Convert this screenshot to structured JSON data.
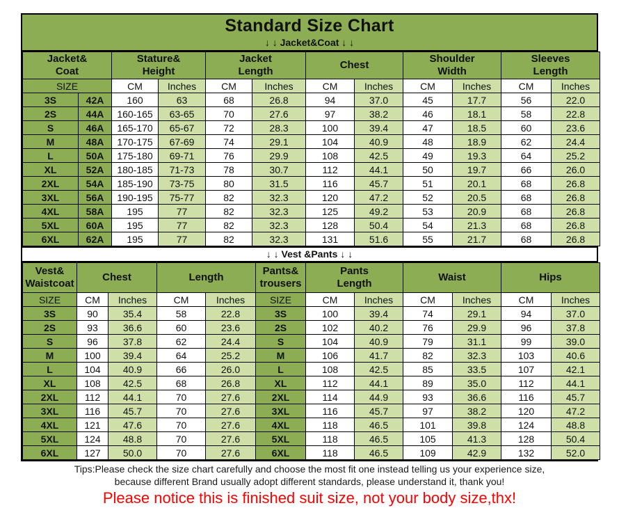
{
  "title": "Standard Size Chart",
  "sections": {
    "jacket_label": "↓ ↓  Jacket&Coat ↓ ↓",
    "vest_label": "↓ ↓  Vest &Pants ↓ ↓"
  },
  "colors": {
    "header_green": "#8cad53",
    "light_green": "#cedfa8",
    "red_notice": "#ff0000"
  },
  "jacket_table": {
    "group_headers": [
      "Jacket&\nCoat",
      "Stature&\nHeight",
      "Jacket\nLength",
      "Chest",
      "Shoulder\nWidth",
      "Sleeves\nLength"
    ],
    "subheader": [
      "SIZE",
      "CM",
      "Inches",
      "CM",
      "Inches",
      "CM",
      "Inches",
      "CM",
      "Inches",
      "CM",
      "Inches"
    ],
    "rows": [
      [
        "3S",
        "42A",
        "160",
        "63",
        "68",
        "26.8",
        "94",
        "37.0",
        "45",
        "17.7",
        "56",
        "22.0"
      ],
      [
        "2S",
        "44A",
        "160-165",
        "63-65",
        "70",
        "27.6",
        "97",
        "38.2",
        "46",
        "18.1",
        "58",
        "22.8"
      ],
      [
        "S",
        "46A",
        "165-170",
        "65-67",
        "72",
        "28.3",
        "100",
        "39.4",
        "47",
        "18.5",
        "60",
        "23.6"
      ],
      [
        "M",
        "48A",
        "170-175",
        "67-69",
        "74",
        "29.1",
        "104",
        "40.9",
        "48",
        "18.9",
        "62",
        "24.4"
      ],
      [
        "L",
        "50A",
        "175-180",
        "69-71",
        "76",
        "29.9",
        "108",
        "42.5",
        "49",
        "19.3",
        "64",
        "25.2"
      ],
      [
        "XL",
        "52A",
        "180-185",
        "71-73",
        "78",
        "30.7",
        "112",
        "44.1",
        "50",
        "19.7",
        "66",
        "26.0"
      ],
      [
        "2XL",
        "54A",
        "185-190",
        "73-75",
        "80",
        "31.5",
        "116",
        "45.7",
        "51",
        "20.1",
        "68",
        "26.8"
      ],
      [
        "3XL",
        "56A",
        "190-195",
        "75-77",
        "82",
        "32.3",
        "120",
        "47.2",
        "52",
        "20.5",
        "68",
        "26.8"
      ],
      [
        "4XL",
        "58A",
        "195",
        "77",
        "82",
        "32.3",
        "125",
        "49.2",
        "53",
        "20.9",
        "68",
        "26.8"
      ],
      [
        "5XL",
        "60A",
        "195",
        "77",
        "82",
        "32.3",
        "128",
        "50.4",
        "54",
        "21.3",
        "68",
        "26.8"
      ],
      [
        "6XL",
        "62A",
        "195",
        "77",
        "82",
        "32.3",
        "131",
        "51.6",
        "55",
        "21.7",
        "68",
        "26.8"
      ]
    ]
  },
  "vest_table": {
    "group_headers": [
      "Vest&\nWaistcoat",
      "Chest",
      "Length",
      "Pants&\ntrousers",
      "Pants\nLength",
      "Waist",
      "Hips"
    ],
    "subheader": [
      "SIZE",
      "CM",
      "Inches",
      "CM",
      "Inches",
      "SIZE",
      "CM",
      "Inches",
      "CM",
      "Inches",
      "CM",
      "Inches"
    ],
    "rows": [
      [
        "3S",
        "90",
        "35.4",
        "58",
        "22.8",
        "3S",
        "100",
        "39.4",
        "74",
        "29.1",
        "94",
        "37.0"
      ],
      [
        "2S",
        "93",
        "36.6",
        "60",
        "23.6",
        "2S",
        "102",
        "40.2",
        "76",
        "29.9",
        "96",
        "37.8"
      ],
      [
        "S",
        "96",
        "37.8",
        "62",
        "24.4",
        "S",
        "104",
        "40.9",
        "79",
        "31.1",
        "99",
        "39.0"
      ],
      [
        "M",
        "100",
        "39.4",
        "64",
        "25.2",
        "M",
        "106",
        "41.7",
        "82",
        "32.3",
        "103",
        "40.6"
      ],
      [
        "L",
        "104",
        "40.9",
        "66",
        "26.0",
        "L",
        "108",
        "42.5",
        "85",
        "33.5",
        "107",
        "42.1"
      ],
      [
        "XL",
        "108",
        "42.5",
        "68",
        "26.8",
        "XL",
        "112",
        "44.1",
        "89",
        "35.0",
        "112",
        "44.1"
      ],
      [
        "2XL",
        "112",
        "44.1",
        "70",
        "27.6",
        "2XL",
        "114",
        "44.9",
        "93",
        "36.6",
        "116",
        "45.7"
      ],
      [
        "3XL",
        "116",
        "45.7",
        "70",
        "27.6",
        "3XL",
        "116",
        "45.7",
        "97",
        "38.2",
        "120",
        "47.2"
      ],
      [
        "4XL",
        "121",
        "47.6",
        "70",
        "27.6",
        "4XL",
        "118",
        "46.5",
        "101",
        "39.8",
        "124",
        "48.8"
      ],
      [
        "5XL",
        "124",
        "48.8",
        "70",
        "27.6",
        "5XL",
        "118",
        "46.5",
        "105",
        "41.3",
        "128",
        "50.4"
      ],
      [
        "6XL",
        "127",
        "50.0",
        "70",
        "27.6",
        "6XL",
        "118",
        "46.5",
        "109",
        "42.9",
        "132",
        "52.0"
      ]
    ]
  },
  "footer": {
    "tips_line1": "Tips:Please check the size chart carefully and choose the most fit one instead telling us your experience size,",
    "tips_line2": "because different Brand usually adopt different standards, please understand it, thank you!",
    "notice": "Please notice this is finished suit size, not your body size,thx!"
  }
}
